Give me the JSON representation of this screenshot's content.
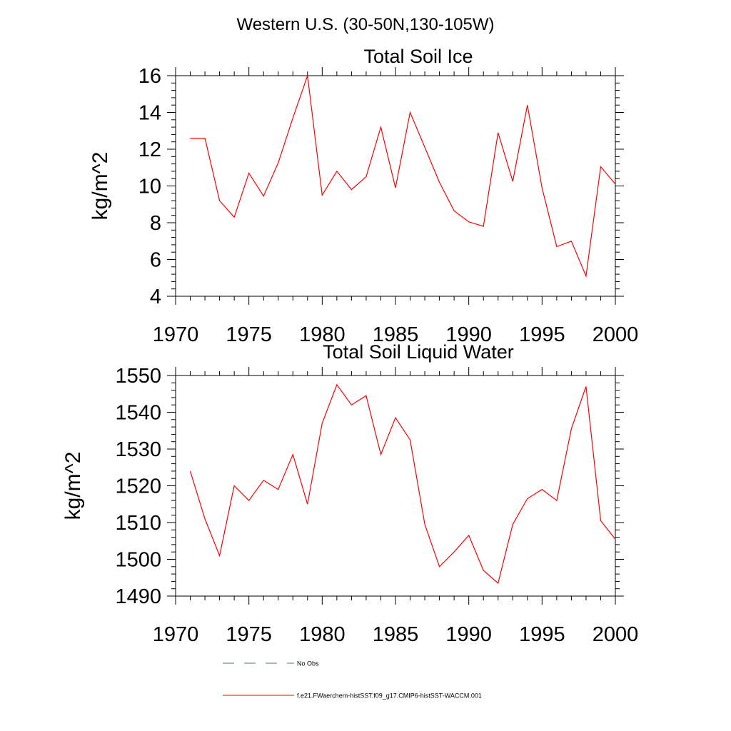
{
  "page_title": "Western U.S. (30-50N,130-105W)",
  "legend": [
    {
      "label": "No Obs",
      "style": "dashed",
      "color": "#5a6e96"
    },
    {
      "label": "f.e21.FWaerchem-histSST.f09_g17.CMIP6-histSST-WACCM.001",
      "style": "solid",
      "color": "#ff0000"
    }
  ],
  "chart_data": [
    {
      "type": "line",
      "title": "Total Soil Ice",
      "xlabel": "",
      "ylabel": "kg/m^2",
      "xlim": [
        1970,
        2000
      ],
      "ylim": [
        4,
        16
      ],
      "xticks": [
        1970,
        1975,
        1980,
        1985,
        1990,
        1995,
        2000
      ],
      "yticks": [
        4,
        6,
        8,
        10,
        12,
        14,
        16
      ],
      "grid": false,
      "legend_position": "bottom",
      "series": [
        {
          "color": "#ff0000",
          "x": [
            1971,
            1972,
            1973,
            1974,
            1975,
            1976,
            1977,
            1978,
            1979,
            1980,
            1981,
            1982,
            1983,
            1984,
            1985,
            1986,
            1987,
            1988,
            1989,
            1990,
            1991,
            1992,
            1993,
            1994,
            1995,
            1996,
            1997,
            1998,
            1999,
            2000
          ],
          "values": [
            12.6,
            12.6,
            9.2,
            8.3,
            10.7,
            9.45,
            11.25,
            13.7,
            16.0,
            9.5,
            10.8,
            9.8,
            10.5,
            13.2,
            9.9,
            14.0,
            12.1,
            10.2,
            8.65,
            8.05,
            7.8,
            12.9,
            10.25,
            14.4,
            9.9,
            6.7,
            7.0,
            5.1,
            11.05,
            10.1
          ]
        }
      ]
    },
    {
      "type": "line",
      "title": "Total Soil Liquid Water",
      "xlabel": "",
      "ylabel": "kg/m^2",
      "xlim": [
        1970,
        2000
      ],
      "ylim": [
        1490,
        1550
      ],
      "xticks": [
        1970,
        1975,
        1980,
        1985,
        1990,
        1995,
        2000
      ],
      "yticks": [
        1490,
        1500,
        1510,
        1520,
        1530,
        1540,
        1550
      ],
      "grid": false,
      "legend_position": "bottom",
      "series": [
        {
          "color": "#ff0000",
          "x": [
            1971,
            1972,
            1973,
            1974,
            1975,
            1976,
            1977,
            1978,
            1979,
            1980,
            1981,
            1982,
            1983,
            1984,
            1985,
            1986,
            1987,
            1988,
            1989,
            1990,
            1991,
            1992,
            1993,
            1994,
            1995,
            1996,
            1997,
            1998,
            1999,
            2000
          ],
          "values": [
            1524,
            1511,
            1501,
            1520,
            1516,
            1521.5,
            1519,
            1528.5,
            1515,
            1537,
            1547.5,
            1542,
            1544.5,
            1528.5,
            1538.5,
            1532.5,
            1509.5,
            1498,
            1502,
            1506.5,
            1497,
            1493.5,
            1509.5,
            1516.5,
            1519,
            1516,
            1535.5,
            1547,
            1510.5,
            1505.5
          ]
        }
      ]
    }
  ]
}
